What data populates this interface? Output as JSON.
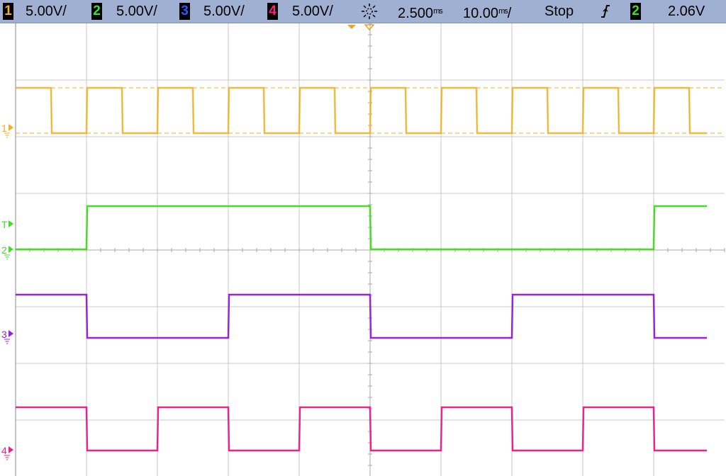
{
  "status_bar": {
    "channels": [
      {
        "num": "1",
        "scale": "5.00V/",
        "color": "#f0b020"
      },
      {
        "num": "2",
        "scale": "5.00V/",
        "color": "#44dd22"
      },
      {
        "num": "3",
        "scale": "5.00V/",
        "color": "#3355ff"
      },
      {
        "num": "4",
        "scale": "5.00V/",
        "color": "#ff2277"
      }
    ],
    "trigger_position_icon": "trigger-sun-icon",
    "delay": "2.500ms",
    "timebase": "10.00ms/",
    "run_state": "Stop",
    "trigger_edge_icon": "rising-edge-icon",
    "trigger_channel": "2",
    "trigger_level": "2.06V"
  },
  "colors": {
    "ch1": "#f0b020",
    "ch2": "#44dd22",
    "ch3": "#9922dd",
    "ch4": "#ee2288",
    "grid": "#c8c8c8",
    "screen_bg": "#ffffff"
  },
  "chart_data": {
    "type": "line",
    "x_unit": "ms",
    "time_per_division_ms": 10,
    "xlim_ms": [
      -50,
      50
    ],
    "divisions": {
      "x": 10,
      "y": 8
    },
    "volts_per_division": 5,
    "grid": true,
    "channel_markers": [
      {
        "label": "1",
        "channel": "ch1"
      },
      {
        "label": "T",
        "channel": "trigger"
      },
      {
        "label": "2",
        "channel": "ch2"
      },
      {
        "label": "3",
        "channel": "ch3"
      },
      {
        "label": "4",
        "channel": "ch4"
      }
    ],
    "series": [
      {
        "name": "1",
        "low_V": 0,
        "high_V": 4,
        "period_ms": 10,
        "duty": 0.5,
        "first_rising_ms": -50
      },
      {
        "name": "2",
        "low_V": 0,
        "high_V": 5,
        "period_ms": 80,
        "duty": 0.5,
        "first_rising_ms": -40
      },
      {
        "name": "3",
        "low_V": 0,
        "high_V": 5,
        "period_ms": 40,
        "duty": 0.5,
        "first_rising_ms": -20
      },
      {
        "name": "4",
        "low_V": 0,
        "high_V": 5,
        "period_ms": 20,
        "duty": 0.5,
        "first_rising_ms": -30
      }
    ]
  }
}
